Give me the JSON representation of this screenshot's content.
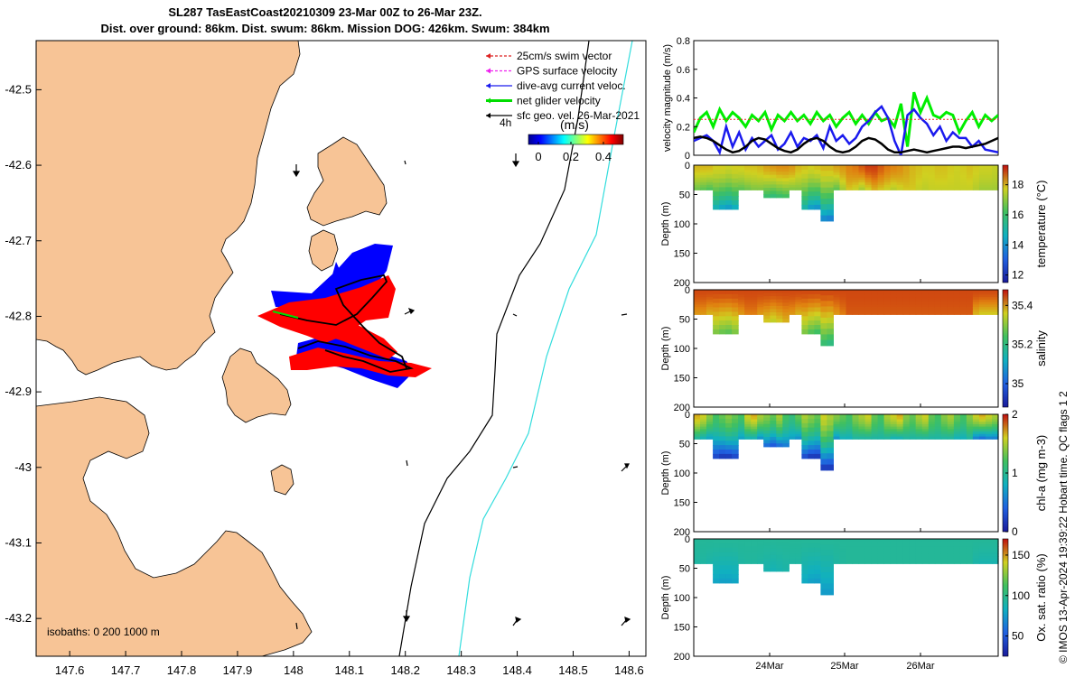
{
  "title": {
    "line1": "SL287 TasEastCoast20210309 23-Mar 00Z to 26-Mar 23Z.",
    "line2": "Dist. over ground: 86km. Dist. swum: 86km. Mission DOG: 426km. Swum: 384km"
  },
  "credit": "© IMOS 13-Apr-2024 19:39:22 Hobart time. QC flags 1  2",
  "colors": {
    "land": "#f7c496",
    "track_red": "#ff0000",
    "track_blue": "#0000ff",
    "track_black": "#000000",
    "isobath_200": "#000000",
    "isobath_1000": "#33dddd",
    "speed_green": "#00ee00",
    "speed_blue": "#1a1aee",
    "speed_black": "#000000",
    "swim_red": "#ee2222"
  },
  "map": {
    "lon_ticks": [
      "147.6",
      "147.7",
      "147.8",
      "147.9",
      "148",
      "148.1",
      "148.2",
      "148.3",
      "148.4",
      "148.5",
      "148.6"
    ],
    "lat_ticks": [
      "-42.5",
      "-42.6",
      "-42.7",
      "-42.8",
      "-42.9",
      "-43",
      "-43.1",
      "-43.2"
    ],
    "isobaths_label": "isobaths: 0   200  1000 m",
    "duration_label": "4h",
    "colorbar_title": "(m/s)",
    "colorbar_ticks": [
      "0",
      "0.2",
      "0.4"
    ],
    "legend": [
      {
        "label": "25cm/s swim vector",
        "color": "#dd2222"
      },
      {
        "label": "GPS surface velocity",
        "color": "#ee22ee"
      },
      {
        "label": "dive-avg current veloc.",
        "color": "#1a1aee"
      },
      {
        "label": "net glider velocity",
        "color": "#00dd00"
      },
      {
        "label": "sfc geo. vel. 26-Mar-2021",
        "color": "#000000"
      }
    ]
  },
  "chart_data": [
    {
      "type": "line",
      "title": "",
      "ylabel": "velocity magnitude (m/s)",
      "ylim": [
        0,
        0.8
      ],
      "yticks": [
        "0",
        "0.2",
        "0.4",
        "0.6",
        "0.8"
      ],
      "series": [
        {
          "name": "net glider velocity",
          "color": "#00ee00",
          "values": [
            0.16,
            0.26,
            0.3,
            0.2,
            0.32,
            0.24,
            0.3,
            0.26,
            0.2,
            0.28,
            0.24,
            0.3,
            0.18,
            0.28,
            0.24,
            0.3,
            0.24,
            0.28,
            0.22,
            0.3,
            0.24,
            0.28,
            0.2,
            0.26,
            0.3,
            0.22,
            0.28,
            0.22,
            0.3,
            0.24,
            0.26,
            0.2,
            0.36,
            0.06,
            0.44,
            0.3,
            0.4,
            0.28,
            0.26,
            0.3,
            0.28,
            0.16,
            0.24,
            0.3,
            0.2,
            0.28,
            0.24,
            0.28
          ]
        },
        {
          "name": "dive-avg current veloc.",
          "color": "#1a1aee",
          "values": [
            0.1,
            0.12,
            0.14,
            0.1,
            0.02,
            0.2,
            0.06,
            0.16,
            0.04,
            0.12,
            0.06,
            0.1,
            0.14,
            0.04,
            0.08,
            0.16,
            0.06,
            0.12,
            0.1,
            0.14,
            0.05,
            0.2,
            0.1,
            0.14,
            0.08,
            0.12,
            0.2,
            0.24,
            0.3,
            0.34,
            0.26,
            0.1,
            0.0,
            0.28,
            0.32,
            0.26,
            0.22,
            0.14,
            0.2,
            0.1,
            0.16,
            0.12,
            0.12,
            0.06,
            0.1,
            0.04,
            0.03,
            0.02
          ]
        },
        {
          "name": "sfc geo. vel.",
          "color": "#000000",
          "values": [
            0.12,
            0.13,
            0.12,
            0.1,
            0.07,
            0.04,
            0.02,
            0.03,
            0.06,
            0.1,
            0.12,
            0.11,
            0.08,
            0.05,
            0.03,
            0.02,
            0.04,
            0.08,
            0.11,
            0.12,
            0.1,
            0.06,
            0.03,
            0.02,
            0.03,
            0.06,
            0.1,
            0.12,
            0.11,
            0.08,
            0.04,
            0.02,
            0.02,
            0.03,
            0.04,
            0.03,
            0.02,
            0.03,
            0.04,
            0.05,
            0.06,
            0.06,
            0.05,
            0.06,
            0.07,
            0.08,
            0.1,
            0.12
          ]
        },
        {
          "name": "swim speed",
          "color": "#ee2222",
          "values": [
            0.25,
            0.25,
            0.25,
            0.25,
            0.25,
            0.25,
            0.25,
            0.25,
            0.25,
            0.25,
            0.25,
            0.25,
            0.25,
            0.25,
            0.25,
            0.25,
            0.25,
            0.25,
            0.25,
            0.25,
            0.25,
            0.25,
            0.25,
            0.25,
            0.25,
            0.25,
            0.25,
            0.25,
            0.25,
            0.25,
            0.25,
            0.25,
            0.25,
            0.25,
            0.25,
            0.25,
            0.25,
            0.25,
            0.25,
            0.25,
            0.25,
            0.25,
            0.25,
            0.25,
            0.25,
            0.25,
            0.25,
            0.25
          ]
        }
      ]
    },
    {
      "type": "heatmap",
      "variable": "temperature (°C)",
      "ylabel": "Depth (m)",
      "ylim": [
        0,
        200
      ],
      "yticks": [
        "0",
        "50",
        "100",
        "150",
        "200"
      ],
      "clim": [
        11.5,
        19.3
      ],
      "cticks": [
        "12",
        "14",
        "16",
        "18"
      ],
      "xticks": [
        "24Mar",
        "25Mar",
        "26Mar"
      ],
      "max_depth": [
        42,
        42,
        42,
        75,
        75,
        75,
        75,
        42,
        42,
        42,
        42,
        55,
        55,
        55,
        55,
        42,
        42,
        75,
        75,
        75,
        95,
        95,
        42,
        42,
        42,
        42,
        42,
        42,
        42,
        42,
        42,
        42,
        42,
        42,
        42,
        42,
        42,
        42,
        42,
        42,
        42,
        42,
        42,
        42,
        42,
        42,
        42,
        42
      ],
      "surface_value": [
        18.0,
        18.0,
        18.0,
        17.8,
        17.8,
        17.7,
        17.8,
        17.8,
        17.9,
        17.9,
        18.0,
        18.2,
        18.3,
        18.4,
        18.4,
        18.3,
        18.0,
        17.9,
        17.8,
        17.9,
        18.0,
        18.0,
        18.2,
        18.3,
        18.5,
        18.6,
        18.8,
        19.0,
        19.0,
        18.8,
        18.6,
        18.5,
        18.4,
        18.2,
        18.0,
        17.9,
        17.8,
        17.8,
        17.9,
        17.9,
        17.8,
        17.7,
        17.8,
        17.9,
        17.8,
        17.7,
        17.7,
        17.6
      ],
      "bottom_value": [
        16.6,
        16.4,
        16.2,
        14.6,
        14.2,
        14.0,
        14.4,
        16.4,
        16.6,
        16.8,
        16.8,
        15.8,
        15.6,
        15.8,
        16.0,
        16.8,
        16.8,
        14.8,
        14.0,
        13.8,
        13.6,
        13.4,
        16.4,
        17.2,
        17.8,
        17.6,
        17.2,
        17.6,
        18.0,
        17.8,
        17.6,
        17.4,
        17.6,
        17.8,
        17.8,
        17.6,
        17.5,
        17.6,
        17.6,
        17.6,
        17.6,
        17.6,
        17.6,
        17.6,
        17.4,
        17.2,
        17.2,
        17.2
      ]
    },
    {
      "type": "heatmap",
      "variable": "salinity",
      "ylabel": "Depth (m)",
      "ylim": [
        0,
        200
      ],
      "yticks": [
        "0",
        "50",
        "100",
        "150",
        "200"
      ],
      "clim": [
        34.88,
        35.48
      ],
      "cticks": [
        "35",
        "35.2",
        "35.4"
      ],
      "xticks": [
        "24Mar",
        "25Mar",
        "26Mar"
      ],
      "max_depth": [
        42,
        42,
        42,
        75,
        75,
        75,
        75,
        42,
        42,
        42,
        42,
        55,
        55,
        55,
        55,
        42,
        42,
        75,
        75,
        75,
        95,
        95,
        42,
        42,
        42,
        42,
        42,
        42,
        42,
        42,
        42,
        42,
        42,
        42,
        42,
        42,
        42,
        42,
        42,
        42,
        42,
        42,
        42,
        42,
        42,
        42,
        42,
        42
      ],
      "surface_value": [
        35.45,
        35.45,
        35.45,
        35.45,
        35.45,
        35.45,
        35.45,
        35.45,
        35.45,
        35.45,
        35.45,
        35.45,
        35.45,
        35.45,
        35.45,
        35.45,
        35.45,
        35.45,
        35.45,
        35.45,
        35.45,
        35.45,
        35.45,
        35.45,
        35.45,
        35.45,
        35.45,
        35.45,
        35.45,
        35.45,
        35.45,
        35.45,
        35.45,
        35.45,
        35.45,
        35.45,
        35.45,
        35.45,
        35.45,
        35.45,
        35.45,
        35.45,
        35.45,
        35.45,
        35.45,
        35.45,
        35.45,
        35.45
      ],
      "bottom_value": [
        35.4,
        35.4,
        35.38,
        35.28,
        35.26,
        35.25,
        35.28,
        35.4,
        35.42,
        35.42,
        35.4,
        35.36,
        35.34,
        35.36,
        35.38,
        35.4,
        35.38,
        35.28,
        35.24,
        35.22,
        35.2,
        35.18,
        35.4,
        35.42,
        35.44,
        35.44,
        35.44,
        35.44,
        35.44,
        35.44,
        35.44,
        35.44,
        35.44,
        35.44,
        35.44,
        35.44,
        35.44,
        35.44,
        35.44,
        35.44,
        35.44,
        35.44,
        35.44,
        35.44,
        35.38,
        35.36,
        35.36,
        35.36
      ]
    },
    {
      "type": "heatmap",
      "variable": "chl-a (mg m-3)",
      "ylabel": "Depth (m)",
      "ylim": [
        0,
        200
      ],
      "yticks": [
        "0",
        "50",
        "100",
        "150",
        "200"
      ],
      "clim": [
        0,
        2
      ],
      "cticks": [
        "0",
        "1",
        "2"
      ],
      "xticks": [
        "24Mar",
        "25Mar",
        "26Mar"
      ],
      "max_depth": [
        42,
        42,
        42,
        75,
        75,
        75,
        75,
        42,
        42,
        42,
        42,
        55,
        55,
        55,
        55,
        42,
        42,
        75,
        75,
        75,
        95,
        95,
        42,
        42,
        42,
        42,
        42,
        42,
        42,
        42,
        42,
        42,
        42,
        42,
        42,
        42,
        42,
        42,
        42,
        42,
        42,
        42,
        42,
        42,
        42,
        42,
        42,
        42
      ],
      "surface_value": [
        1.7,
        1.6,
        1.4,
        1.2,
        1.3,
        1.4,
        1.3,
        1.2,
        1.6,
        1.7,
        1.5,
        1.4,
        1.3,
        1.5,
        1.2,
        1.1,
        1.3,
        1.5,
        1.4,
        1.3,
        1.6,
        1.5,
        1.4,
        1.3,
        1.2,
        1.4,
        1.5,
        1.6,
        1.3,
        1.2,
        1.5,
        1.6,
        1.7,
        1.4,
        1.3,
        1.5,
        1.6,
        1.3,
        1.2,
        1.4,
        1.5,
        1.3,
        1.2,
        1.4,
        1.6,
        1.7,
        1.6,
        1.5
      ],
      "bottom_value": [
        0.9,
        0.8,
        0.7,
        0.2,
        0.1,
        0.1,
        0.2,
        0.7,
        0.8,
        0.8,
        0.6,
        0.4,
        0.3,
        0.4,
        0.5,
        0.7,
        0.6,
        0.2,
        0.1,
        0.1,
        0.1,
        0.1,
        0.6,
        0.8,
        0.8,
        0.9,
        0.9,
        0.9,
        0.9,
        0.9,
        0.9,
        0.8,
        0.8,
        0.9,
        0.9,
        0.9,
        0.9,
        0.9,
        0.9,
        0.9,
        0.9,
        0.8,
        0.8,
        0.9,
        0.5,
        0.4,
        0.5,
        0.5
      ]
    },
    {
      "type": "heatmap",
      "variable": "Ox. sat. ratio (%)",
      "ylabel": "Depth (m)",
      "ylim": [
        0,
        200
      ],
      "yticks": [
        "0",
        "50",
        "100",
        "150",
        "200"
      ],
      "clim": [
        25,
        170
      ],
      "cticks": [
        "50",
        "100",
        "150"
      ],
      "xticks": [
        "24Mar",
        "25Mar",
        "26Mar"
      ],
      "max_depth": [
        42,
        42,
        42,
        75,
        75,
        75,
        75,
        42,
        42,
        42,
        42,
        55,
        55,
        55,
        55,
        42,
        42,
        75,
        75,
        75,
        95,
        95,
        42,
        42,
        42,
        42,
        42,
        42,
        42,
        42,
        42,
        42,
        42,
        42,
        42,
        42,
        42,
        42,
        42,
        42,
        42,
        42,
        42,
        42,
        42,
        42,
        42,
        42
      ],
      "surface_value": [
        95,
        95,
        95,
        95,
        95,
        95,
        95,
        95,
        95,
        95,
        95,
        95,
        95,
        95,
        95,
        95,
        95,
        95,
        95,
        95,
        95,
        95,
        95,
        95,
        95,
        95,
        95,
        95,
        95,
        95,
        95,
        95,
        95,
        95,
        95,
        95,
        95,
        95,
        95,
        95,
        95,
        95,
        95,
        95,
        95,
        95,
        95,
        95
      ],
      "bottom_value": [
        92,
        92,
        90,
        78,
        76,
        76,
        78,
        92,
        93,
        93,
        92,
        88,
        86,
        88,
        90,
        92,
        92,
        80,
        76,
        75,
        74,
        74,
        92,
        94,
        95,
        95,
        95,
        95,
        95,
        95,
        95,
        95,
        95,
        95,
        95,
        95,
        95,
        95,
        95,
        95,
        95,
        95,
        95,
        95,
        90,
        88,
        88,
        88
      ]
    }
  ]
}
